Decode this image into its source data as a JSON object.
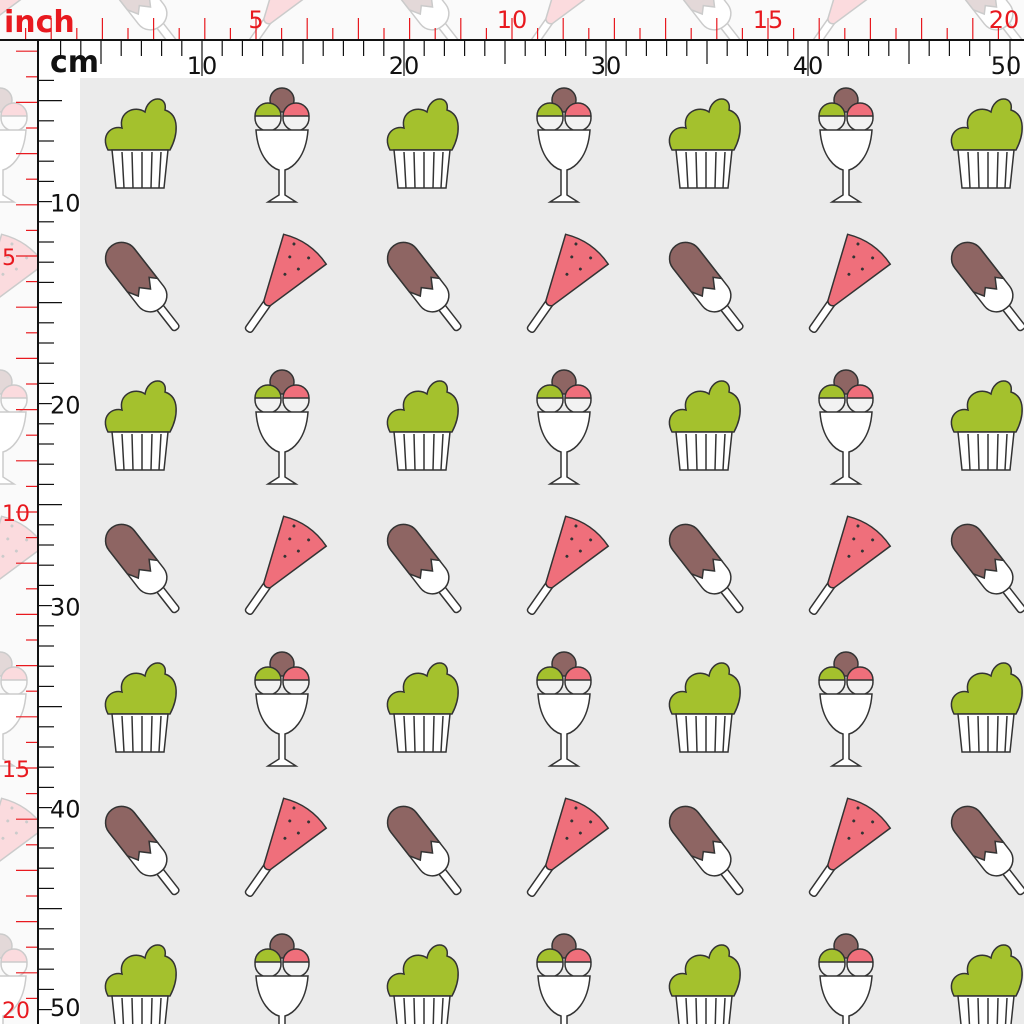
{
  "ruler": {
    "top": {
      "inch_unit": "inch",
      "cm_unit": "cm",
      "inch_labels": [
        "5",
        "10",
        "15",
        "20"
      ],
      "cm_labels": [
        "10",
        "20",
        "30",
        "40",
        "50"
      ]
    },
    "left": {
      "cm_labels": [
        "10",
        "20",
        "30",
        "40",
        "50"
      ],
      "inch_labels": [
        "5",
        "10",
        "15",
        "20"
      ]
    }
  }
}
